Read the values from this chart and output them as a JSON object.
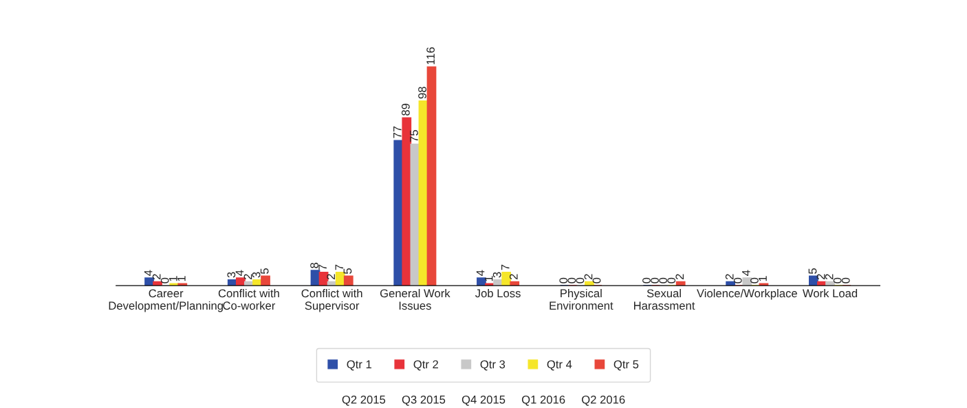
{
  "chart_data": {
    "type": "bar",
    "categories": [
      "Career\nDevelopment/Planning",
      "Conflict with\nCo-worker",
      "Conflict with\nSupervisor",
      "General Work\nIssues",
      "Job Loss",
      "Physical\nEnvironment",
      "Sexual\nHarassment",
      "Violence/Workplace",
      "Work Load"
    ],
    "series": [
      {
        "name": "Qtr 1",
        "color": "#2e4fa8",
        "values": [
          4,
          3,
          8,
          77,
          4,
          0,
          0,
          2,
          5
        ]
      },
      {
        "name": "Qtr 2",
        "color": "#e8333a",
        "values": [
          2,
          4,
          7,
          89,
          1,
          0,
          0,
          0,
          2
        ]
      },
      {
        "name": "Qtr 3",
        "color": "#c8c8c8",
        "values": [
          0,
          2,
          2,
          75,
          3,
          0,
          0,
          4,
          2
        ]
      },
      {
        "name": "Qtr 4",
        "color": "#f5e62a",
        "values": [
          1,
          3,
          7,
          98,
          7,
          2,
          0,
          0,
          0
        ]
      },
      {
        "name": "Qtr 5",
        "color": "#e8473a",
        "values": [
          1,
          5,
          5,
          116,
          2,
          0,
          2,
          1,
          0
        ]
      }
    ],
    "data_labels": true,
    "legend": "bottom",
    "grid": false,
    "annotations": [
      "Q2 2015     Q3 2015     Q4 2015     Q1 2016     Q2 2016"
    ]
  }
}
